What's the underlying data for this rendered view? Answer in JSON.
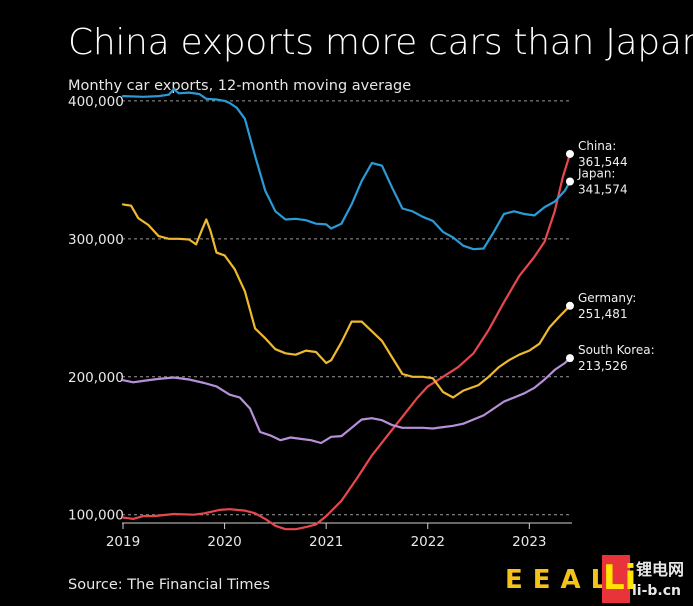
{
  "chart_data": {
    "type": "line",
    "title": "China exports more cars than Japan",
    "subtitle": "Monthy car exports, 12-month moving average",
    "source": "Source: The Financial Times",
    "xlabel": "",
    "ylabel": "",
    "x_range": [
      2019.0,
      2023.42
    ],
    "ylim": [
      94000,
      405000
    ],
    "x_ticks": [
      "2019",
      "2020",
      "2021",
      "2022",
      "2023"
    ],
    "y_ticks": [
      {
        "value": 100000,
        "label": "100,000"
      },
      {
        "value": 200000,
        "label": "200,000"
      },
      {
        "value": 300000,
        "label": "300,000"
      },
      {
        "value": 400000,
        "label": "400,000"
      }
    ],
    "grid": "horizontal dashed",
    "series": [
      {
        "name": "China",
        "end_label": "China:",
        "end_value": "361,544",
        "color": "#e8474e",
        "points": [
          [
            2019.0,
            98000
          ],
          [
            2019.1,
            97000
          ],
          [
            2019.2,
            99000
          ],
          [
            2019.3,
            99000
          ],
          [
            2019.5,
            100500
          ],
          [
            2019.7,
            100000
          ],
          [
            2019.8,
            101000
          ],
          [
            2019.95,
            103500
          ],
          [
            2020.05,
            104000
          ],
          [
            2020.2,
            103000
          ],
          [
            2020.3,
            101000
          ],
          [
            2020.4,
            97000
          ],
          [
            2020.5,
            92000
          ],
          [
            2020.6,
            89500
          ],
          [
            2020.7,
            89500
          ],
          [
            2020.8,
            91000
          ],
          [
            2020.9,
            93000
          ],
          [
            2021.0,
            99000
          ],
          [
            2021.15,
            110000
          ],
          [
            2021.3,
            126000
          ],
          [
            2021.45,
            143000
          ],
          [
            2021.6,
            157000
          ],
          [
            2021.75,
            171000
          ],
          [
            2021.9,
            185000
          ],
          [
            2022.0,
            193000
          ],
          [
            2022.15,
            200000
          ],
          [
            2022.3,
            207000
          ],
          [
            2022.45,
            217000
          ],
          [
            2022.6,
            234000
          ],
          [
            2022.75,
            254000
          ],
          [
            2022.9,
            273000
          ],
          [
            2023.05,
            287000
          ],
          [
            2023.15,
            298000
          ],
          [
            2023.25,
            320000
          ],
          [
            2023.33,
            345000
          ],
          [
            2023.4,
            361544
          ]
        ]
      },
      {
        "name": "Japan",
        "end_label": "Japan:",
        "end_value": "341,574",
        "color": "#2b9ad6",
        "points": [
          [
            2019.0,
            403500
          ],
          [
            2019.2,
            403000
          ],
          [
            2019.35,
            403500
          ],
          [
            2019.45,
            404500
          ],
          [
            2019.5,
            408500
          ],
          [
            2019.55,
            405500
          ],
          [
            2019.65,
            406000
          ],
          [
            2019.75,
            405000
          ],
          [
            2019.82,
            401500
          ],
          [
            2019.92,
            401000
          ],
          [
            2020.0,
            400000
          ],
          [
            2020.05,
            398500
          ],
          [
            2020.12,
            395000
          ],
          [
            2020.2,
            387000
          ],
          [
            2020.3,
            360000
          ],
          [
            2020.4,
            335000
          ],
          [
            2020.5,
            320000
          ],
          [
            2020.6,
            314000
          ],
          [
            2020.7,
            314500
          ],
          [
            2020.8,
            313500
          ],
          [
            2020.9,
            311000
          ],
          [
            2021.0,
            310500
          ],
          [
            2021.05,
            307500
          ],
          [
            2021.15,
            311000
          ],
          [
            2021.25,
            325000
          ],
          [
            2021.35,
            342000
          ],
          [
            2021.45,
            355000
          ],
          [
            2021.55,
            353000
          ],
          [
            2021.65,
            337000
          ],
          [
            2021.75,
            322000
          ],
          [
            2021.85,
            320000
          ],
          [
            2021.95,
            316000
          ],
          [
            2022.05,
            313000
          ],
          [
            2022.15,
            305000
          ],
          [
            2022.25,
            301000
          ],
          [
            2022.35,
            295000
          ],
          [
            2022.45,
            292500
          ],
          [
            2022.55,
            293000
          ],
          [
            2022.65,
            305000
          ],
          [
            2022.75,
            318000
          ],
          [
            2022.85,
            320000
          ],
          [
            2022.95,
            318000
          ],
          [
            2023.05,
            317000
          ],
          [
            2023.15,
            323000
          ],
          [
            2023.25,
            327000
          ],
          [
            2023.35,
            335000
          ],
          [
            2023.4,
            341574
          ]
        ]
      },
      {
        "name": "Germany",
        "end_label": "Germany:",
        "end_value": "251,481",
        "color": "#efb92f",
        "points": [
          [
            2019.0,
            325000
          ],
          [
            2019.08,
            324000
          ],
          [
            2019.15,
            315000
          ],
          [
            2019.25,
            310000
          ],
          [
            2019.35,
            302000
          ],
          [
            2019.45,
            300000
          ],
          [
            2019.55,
            300000
          ],
          [
            2019.65,
            299500
          ],
          [
            2019.72,
            296000
          ],
          [
            2019.78,
            307000
          ],
          [
            2019.82,
            314000
          ],
          [
            2019.86,
            306000
          ],
          [
            2019.92,
            290000
          ],
          [
            2020.0,
            288000
          ],
          [
            2020.1,
            278000
          ],
          [
            2020.2,
            262000
          ],
          [
            2020.3,
            235000
          ],
          [
            2020.4,
            228000
          ],
          [
            2020.5,
            220000
          ],
          [
            2020.6,
            217000
          ],
          [
            2020.7,
            216000
          ],
          [
            2020.8,
            219000
          ],
          [
            2020.9,
            218000
          ],
          [
            2021.0,
            210000
          ],
          [
            2021.05,
            212000
          ],
          [
            2021.15,
            225000
          ],
          [
            2021.25,
            240000
          ],
          [
            2021.35,
            240000
          ],
          [
            2021.45,
            233000
          ],
          [
            2021.55,
            226000
          ],
          [
            2021.65,
            214000
          ],
          [
            2021.75,
            202000
          ],
          [
            2021.85,
            200000
          ],
          [
            2021.95,
            200000
          ],
          [
            2022.05,
            199000
          ],
          [
            2022.15,
            189000
          ],
          [
            2022.25,
            185000
          ],
          [
            2022.35,
            190000
          ],
          [
            2022.5,
            194000
          ],
          [
            2022.6,
            200000
          ],
          [
            2022.7,
            207000
          ],
          [
            2022.8,
            212000
          ],
          [
            2022.9,
            216000
          ],
          [
            2023.0,
            219000
          ],
          [
            2023.1,
            224000
          ],
          [
            2023.2,
            236000
          ],
          [
            2023.3,
            244000
          ],
          [
            2023.4,
            251481
          ]
        ]
      },
      {
        "name": "South Korea",
        "end_label": "South Korea:",
        "end_value": "213,526",
        "color": "#b890d9",
        "points": [
          [
            2019.0,
            197500
          ],
          [
            2019.1,
            196000
          ],
          [
            2019.2,
            197000
          ],
          [
            2019.35,
            198500
          ],
          [
            2019.5,
            199500
          ],
          [
            2019.65,
            198000
          ],
          [
            2019.8,
            195500
          ],
          [
            2019.92,
            193000
          ],
          [
            2020.05,
            187000
          ],
          [
            2020.15,
            185000
          ],
          [
            2020.25,
            177000
          ],
          [
            2020.35,
            160000
          ],
          [
            2020.45,
            157500
          ],
          [
            2020.55,
            154000
          ],
          [
            2020.65,
            156000
          ],
          [
            2020.75,
            155000
          ],
          [
            2020.85,
            154000
          ],
          [
            2020.95,
            152000
          ],
          [
            2021.05,
            156500
          ],
          [
            2021.15,
            157000
          ],
          [
            2021.25,
            163000
          ],
          [
            2021.35,
            169000
          ],
          [
            2021.45,
            170000
          ],
          [
            2021.55,
            168500
          ],
          [
            2021.65,
            165000
          ],
          [
            2021.75,
            163000
          ],
          [
            2021.85,
            163000
          ],
          [
            2021.95,
            163000
          ],
          [
            2022.05,
            162500
          ],
          [
            2022.15,
            163500
          ],
          [
            2022.25,
            164500
          ],
          [
            2022.35,
            166000
          ],
          [
            2022.45,
            169000
          ],
          [
            2022.55,
            172000
          ],
          [
            2022.65,
            177000
          ],
          [
            2022.75,
            182000
          ],
          [
            2022.85,
            185000
          ],
          [
            2022.95,
            188000
          ],
          [
            2023.05,
            192000
          ],
          [
            2023.15,
            198000
          ],
          [
            2023.25,
            205000
          ],
          [
            2023.35,
            210000
          ],
          [
            2023.4,
            213526
          ]
        ]
      }
    ]
  },
  "watermark": {
    "logo_text": "EEALI",
    "badge": "Li",
    "site_name": "锂电网",
    "site_url": "li-b.cn"
  }
}
